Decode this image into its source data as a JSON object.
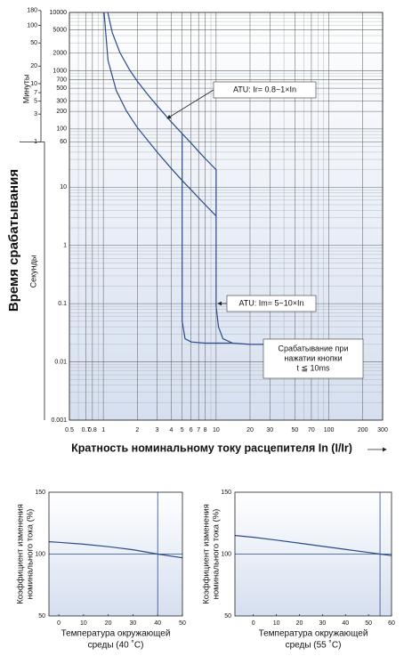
{
  "chart_data": [
    {
      "type": "line",
      "xscale": "log",
      "yscale": "log",
      "xlabel": "Кратность номинальному току расцепителя In (I/Ir)",
      "ylabel": "Время срабатывания",
      "y_seconds_label": "Секунды",
      "y2label": "Минуты",
      "xlim": [
        0.5,
        300
      ],
      "ylim": [
        0.001,
        10000
      ],
      "xticks": [
        0.5,
        0.7,
        0.8,
        1,
        2,
        3,
        4,
        5,
        6,
        7,
        8,
        10,
        20,
        30,
        50,
        70,
        100,
        200,
        300
      ],
      "xminor": [
        0.6,
        0.9,
        9,
        40,
        60,
        80,
        90
      ],
      "yticks": [
        10000,
        5000,
        2000,
        1000,
        700,
        500,
        300,
        200,
        100,
        60,
        10,
        1,
        0.1,
        0.01,
        0.001
      ],
      "yminor": [
        0.002,
        0.003,
        0.004,
        0.005,
        0.006,
        0.007,
        0.008,
        0.009,
        0.02,
        0.03,
        0.04,
        0.05,
        0.06,
        0.07,
        0.08,
        0.09,
        0.2,
        0.3,
        0.4,
        0.5,
        0.6,
        0.7,
        0.8,
        0.9,
        2,
        3,
        4,
        5,
        6,
        7,
        8,
        9,
        20,
        30,
        40,
        50,
        70,
        80,
        90,
        400,
        600,
        800,
        900,
        3000,
        4000,
        6000,
        7000,
        8000,
        9000
      ],
      "y2lim": [
        1.66667e-05,
        166.667
      ],
      "y2ticks": [
        180,
        100,
        50,
        20,
        10,
        7,
        5,
        3,
        1
      ],
      "grid": true,
      "series": [
        {
          "color": "#2b4a8c",
          "x": [
            1.095,
            1.2,
            1.4,
            1.7,
            2,
            2.5,
            3,
            4,
            5,
            6,
            7,
            8,
            10,
            10,
            10.5,
            11.5,
            14,
            20,
            28
          ],
          "values": [
            10000,
            4500,
            2060,
            1050,
            660,
            380,
            250,
            132,
            83,
            57,
            41,
            31,
            20,
            0.09,
            0.04,
            0.025,
            0.021,
            0.02,
            0.02
          ]
        },
        {
          "color": "#2b4a8c",
          "x": [
            1.015,
            1.1,
            1.3,
            1.6,
            2,
            3,
            4,
            5,
            6,
            8,
            10
          ],
          "values": [
            10000,
            1500,
            460,
            204,
            106,
            40,
            21,
            13,
            9,
            5,
            3.2
          ]
        },
        {
          "color": "#2b4a8c",
          "x": [
            5,
            5,
            5.3,
            6,
            8,
            10,
            14
          ],
          "values": [
            83,
            0.05,
            0.025,
            0.022,
            0.021,
            0.021,
            0.021
          ]
        }
      ],
      "annotations": [
        [
          "ATU: Ir= 0.8~1×In"
        ],
        [
          "ATU: Im= 5~10×In"
        ],
        [
          "Срабатывание при",
          "нажатии кнопки",
          "t ≦ 10ms"
        ]
      ]
    },
    {
      "type": "line",
      "ylabel": [
        "Коэффициент изменения",
        "номинального тока (%)"
      ],
      "xlabel": [
        "Температура окружающей",
        "среды (40 ˚C)"
      ],
      "xlim": [
        -4,
        50
      ],
      "ylim": [
        50,
        150
      ],
      "xticks": [
        0,
        10,
        20,
        30,
        40,
        50
      ],
      "yticks": [
        50,
        100,
        150
      ],
      "vline": 40,
      "hline": 100,
      "series": [
        {
          "color": "#2b4a8c",
          "x": [
            -4,
            0,
            10,
            20,
            30,
            40,
            50
          ],
          "values": [
            110,
            109.5,
            108,
            106,
            103.5,
            100,
            97
          ]
        }
      ]
    },
    {
      "type": "line",
      "ylabel": [
        "Коэффициент изменения",
        "номинального тока (%)"
      ],
      "xlabel": [
        "Температура окружающей",
        "среды (55 ˚C)"
      ],
      "xlim": [
        -8,
        60
      ],
      "ylim": [
        50,
        150
      ],
      "xticks": [
        0,
        10,
        20,
        30,
        40,
        50,
        60
      ],
      "yticks": [
        50,
        100,
        150
      ],
      "vline": 55,
      "hline": 100,
      "series": [
        {
          "color": "#2b4a8c",
          "x": [
            -8,
            0,
            10,
            20,
            30,
            40,
            50,
            55,
            60
          ],
          "values": [
            115,
            113.6,
            111.3,
            108.8,
            106.3,
            103.8,
            101.3,
            100,
            98.8
          ]
        }
      ]
    }
  ]
}
